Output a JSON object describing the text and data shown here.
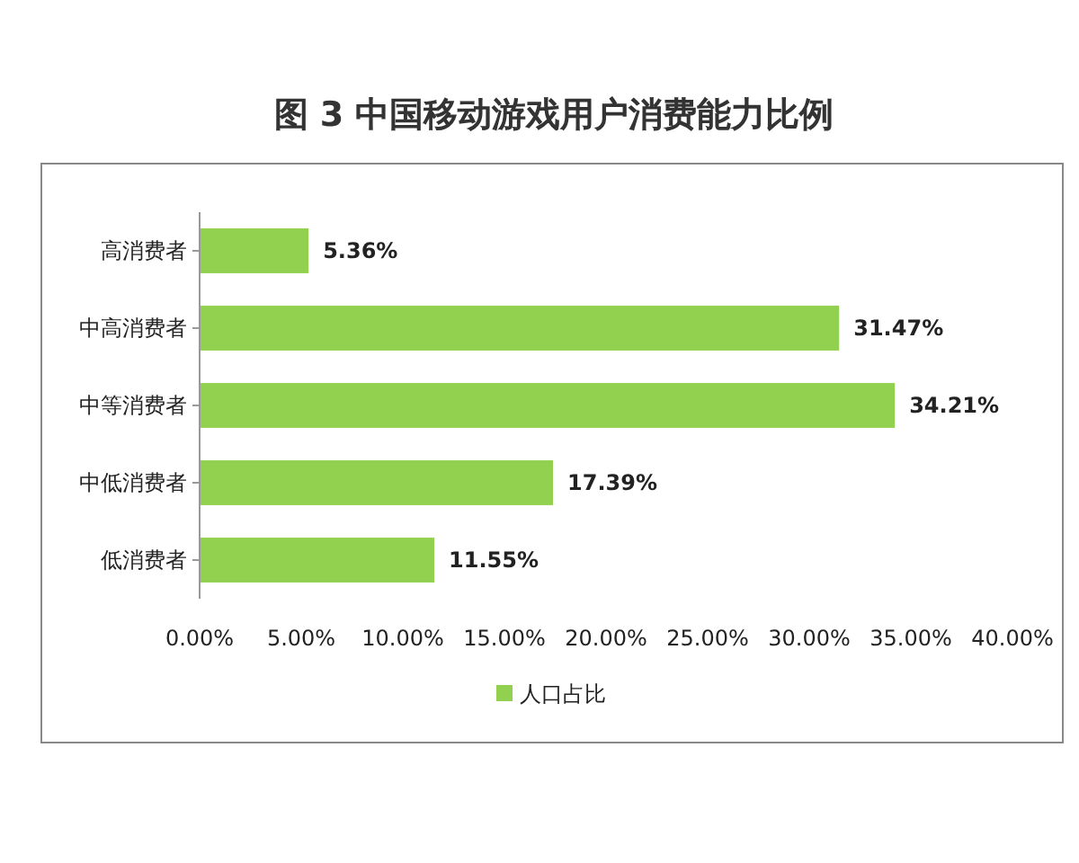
{
  "chart_data": {
    "type": "bar",
    "orientation": "horizontal",
    "title": "图 3  中国移动游戏用户消费能力比例",
    "categories": [
      "高消费者",
      "中高消费者",
      "中等消费者",
      "中低消费者",
      "低消费者"
    ],
    "series": [
      {
        "name": "人口占比",
        "color": "#92d050",
        "values": [
          5.36,
          31.47,
          34.21,
          17.39,
          11.55
        ]
      }
    ],
    "value_labels": [
      "5.36%",
      "31.47%",
      "34.21%",
      "17.39%",
      "11.55%"
    ],
    "xlim": [
      0,
      40
    ],
    "xticks": [
      {
        "value": 0,
        "label": "0.00%"
      },
      {
        "value": 5,
        "label": "5.00%"
      },
      {
        "value": 10,
        "label": "10.00%"
      },
      {
        "value": 15,
        "label": "15.00%"
      },
      {
        "value": 20,
        "label": "20.00%"
      },
      {
        "value": 25,
        "label": "25.00%"
      },
      {
        "value": 30,
        "label": "30.00%"
      },
      {
        "value": 35,
        "label": "35.00%"
      },
      {
        "value": 40,
        "label": "40.00%"
      }
    ],
    "grid": false,
    "legend": "bottom"
  }
}
